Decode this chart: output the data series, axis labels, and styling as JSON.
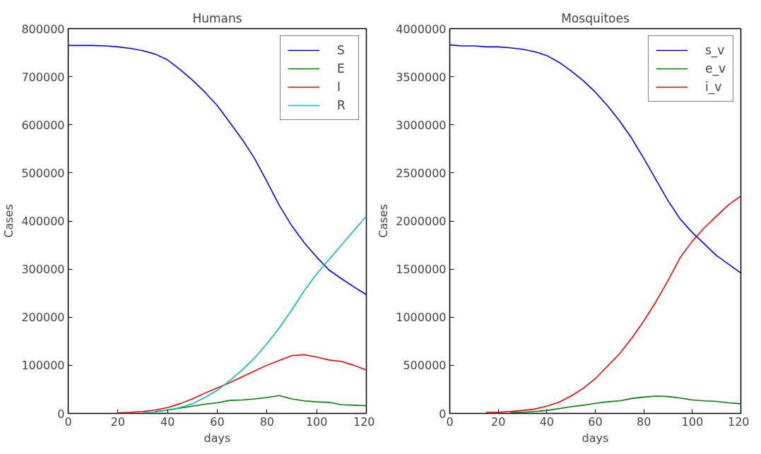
{
  "chart_data": [
    {
      "type": "line",
      "title": "Humans",
      "xlabel": "days",
      "ylabel": "Cases",
      "x": [
        0,
        5,
        10,
        15,
        20,
        25,
        30,
        35,
        40,
        45,
        50,
        55,
        60,
        65,
        70,
        75,
        80,
        85,
        90,
        95,
        100,
        105,
        110,
        115,
        120
      ],
      "xlim": [
        0,
        120
      ],
      "xticks": [
        0,
        20,
        40,
        60,
        80,
        100,
        120
      ],
      "ylim": [
        0,
        800000
      ],
      "yticks": [
        0,
        100000,
        200000,
        300000,
        400000,
        500000,
        600000,
        700000,
        800000
      ],
      "grid": false,
      "legend": "top right",
      "series": [
        {
          "name": "S",
          "color": "#0000ff",
          "values": [
            765000,
            765000,
            765000,
            764000,
            762000,
            759000,
            754000,
            747000,
            735000,
            715000,
            693000,
            668000,
            640000,
            605000,
            570000,
            530000,
            482000,
            432000,
            390000,
            355000,
            325000,
            298000,
            280000,
            263000,
            247000
          ]
        },
        {
          "name": "E",
          "color": "#008000",
          "values": [
            null,
            null,
            null,
            null,
            null,
            null,
            null,
            4000,
            7000,
            11000,
            15000,
            19000,
            22000,
            27000,
            28000,
            30000,
            33000,
            37000,
            30000,
            26000,
            24000,
            23000,
            18000,
            17000,
            16000
          ]
        },
        {
          "name": "I",
          "color": "#ff0000",
          "values": [
            null,
            null,
            null,
            null,
            1000,
            2000,
            4000,
            7000,
            12000,
            20000,
            30000,
            42000,
            53000,
            64000,
            76000,
            88000,
            100000,
            110000,
            120000,
            122000,
            117000,
            111000,
            108000,
            100000,
            90000
          ]
        },
        {
          "name": "R",
          "color": "#00bfbf",
          "values": [
            null,
            null,
            null,
            null,
            null,
            null,
            2000,
            3000,
            7000,
            12000,
            20000,
            33000,
            48000,
            68000,
            90000,
            115000,
            145000,
            178000,
            215000,
            255000,
            290000,
            320000,
            350000,
            380000,
            410000
          ]
        }
      ]
    },
    {
      "type": "line",
      "title": "Mosquitoes",
      "xlabel": "days",
      "ylabel": "Cases",
      "x": [
        0,
        5,
        10,
        15,
        20,
        25,
        30,
        35,
        40,
        45,
        50,
        55,
        60,
        65,
        70,
        75,
        80,
        85,
        90,
        95,
        100,
        105,
        110,
        115,
        120
      ],
      "xlim": [
        0,
        120
      ],
      "xticks": [
        0,
        20,
        40,
        60,
        80,
        100,
        120
      ],
      "ylim": [
        0,
        4000000
      ],
      "yticks": [
        0,
        500000,
        1000000,
        1500000,
        2000000,
        2500000,
        3000000,
        3500000,
        4000000
      ],
      "grid": false,
      "legend": "top right",
      "series": [
        {
          "name": "s_v",
          "color": "#0000ff",
          "values": [
            3830000,
            3820000,
            3820000,
            3810000,
            3810000,
            3800000,
            3785000,
            3760000,
            3720000,
            3650000,
            3560000,
            3460000,
            3340000,
            3200000,
            3040000,
            2860000,
            2650000,
            2430000,
            2210000,
            2020000,
            1880000,
            1760000,
            1640000,
            1550000,
            1460000
          ]
        },
        {
          "name": "e_v",
          "color": "#008000",
          "values": [
            null,
            null,
            null,
            null,
            null,
            10000,
            10000,
            20000,
            30000,
            50000,
            70000,
            85000,
            105000,
            120000,
            130000,
            155000,
            170000,
            180000,
            175000,
            160000,
            140000,
            130000,
            125000,
            110000,
            100000
          ]
        },
        {
          "name": "i_v",
          "color": "#ff0000",
          "values": [
            null,
            null,
            null,
            10000,
            10000,
            20000,
            30000,
            45000,
            75000,
            115000,
            180000,
            260000,
            360000,
            490000,
            620000,
            780000,
            960000,
            1160000,
            1380000,
            1620000,
            1790000,
            1930000,
            2050000,
            2170000,
            2260000
          ]
        }
      ]
    }
  ]
}
